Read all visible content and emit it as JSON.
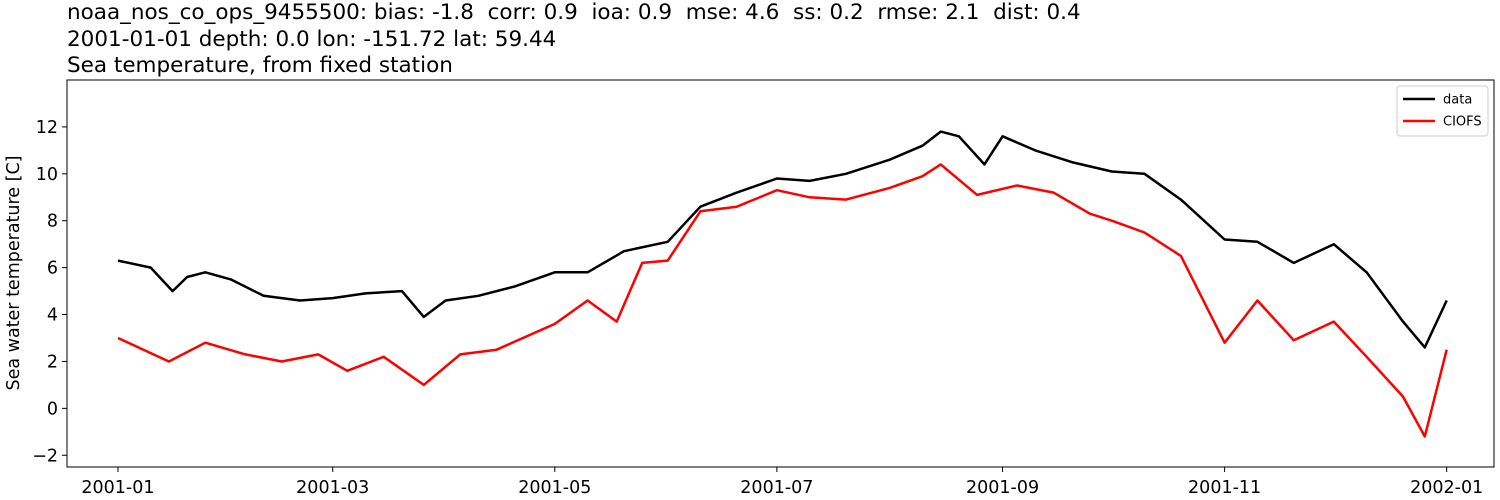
{
  "chart_data": {
    "type": "line",
    "title_lines": [
      "noaa_nos_co_ops_9455500: bias: -1.8  corr: 0.9  ioa: 0.9  mse: 4.6  ss: 0.2  rmse: 2.1  dist: 0.4",
      "2001-01-01 depth: 0.0 lon: -151.72 lat: 59.44",
      "Sea temperature, from fixed station"
    ],
    "xlabel": "",
    "ylabel": "Sea water temperature [C]",
    "xlim": [
      "2000-12-18",
      "2002-01-14"
    ],
    "ylim": [
      -2.5,
      14.0
    ],
    "xticks": [
      "2001-01",
      "2001-03",
      "2001-05",
      "2001-07",
      "2001-09",
      "2001-11",
      "2002-01"
    ],
    "yticks": [
      -2,
      0,
      2,
      4,
      6,
      8,
      10,
      12
    ],
    "grid": false,
    "legend": "top-right",
    "colors": {
      "data": "#000000",
      "CIOFS": "#ff0000"
    },
    "series": [
      {
        "name": "data",
        "x": [
          "2001-01-01",
          "2001-01-10",
          "2001-01-16",
          "2001-01-20",
          "2001-01-25",
          "2001-02-01",
          "2001-02-10",
          "2001-02-20",
          "2001-03-01",
          "2001-03-10",
          "2001-03-20",
          "2001-03-26",
          "2001-04-01",
          "2001-04-10",
          "2001-04-20",
          "2001-05-01",
          "2001-05-10",
          "2001-05-20",
          "2001-06-01",
          "2001-06-10",
          "2001-06-20",
          "2001-07-01",
          "2001-07-10",
          "2001-07-20",
          "2001-08-01",
          "2001-08-10",
          "2001-08-15",
          "2001-08-20",
          "2001-08-27",
          "2001-09-01",
          "2001-09-10",
          "2001-09-20",
          "2001-10-01",
          "2001-10-10",
          "2001-10-20",
          "2001-11-01",
          "2001-11-10",
          "2001-11-20",
          "2001-12-01",
          "2001-12-10",
          "2001-12-20",
          "2001-12-26",
          "2002-01-01"
        ],
        "values": [
          6.3,
          6.0,
          5.0,
          5.6,
          5.8,
          5.5,
          4.8,
          4.6,
          4.7,
          4.9,
          5.0,
          3.9,
          4.6,
          4.8,
          5.2,
          5.8,
          5.8,
          6.7,
          7.1,
          8.6,
          9.2,
          9.8,
          9.7,
          10.0,
          10.6,
          11.2,
          11.8,
          11.6,
          10.4,
          11.6,
          11.0,
          10.5,
          10.1,
          10.0,
          8.9,
          7.2,
          7.1,
          6.2,
          7.0,
          5.8,
          3.7,
          2.6,
          4.6
        ]
      },
      {
        "name": "CIOFS",
        "x": [
          "2001-01-01",
          "2001-01-08",
          "2001-01-15",
          "2001-01-25",
          "2001-02-05",
          "2001-02-15",
          "2001-02-25",
          "2001-03-05",
          "2001-03-15",
          "2001-03-26",
          "2001-04-05",
          "2001-04-15",
          "2001-05-01",
          "2001-05-10",
          "2001-05-18",
          "2001-05-25",
          "2001-06-01",
          "2001-06-10",
          "2001-06-20",
          "2001-07-01",
          "2001-07-10",
          "2001-07-20",
          "2001-08-01",
          "2001-08-10",
          "2001-08-15",
          "2001-08-25",
          "2001-09-05",
          "2001-09-15",
          "2001-09-25",
          "2001-10-01",
          "2001-10-10",
          "2001-10-20",
          "2001-11-01",
          "2001-11-10",
          "2001-11-20",
          "2001-12-01",
          "2001-12-10",
          "2001-12-20",
          "2001-12-26",
          "2002-01-01"
        ],
        "values": [
          3.0,
          2.5,
          2.0,
          2.8,
          2.3,
          2.0,
          2.3,
          1.6,
          2.2,
          1.0,
          2.3,
          2.5,
          3.6,
          4.6,
          3.7,
          6.2,
          6.3,
          8.4,
          8.6,
          9.3,
          9.0,
          8.9,
          9.4,
          9.9,
          10.4,
          9.1,
          9.5,
          9.2,
          8.3,
          8.0,
          7.5,
          6.5,
          2.8,
          4.6,
          2.9,
          3.7,
          2.2,
          0.5,
          -1.2,
          2.5
        ]
      }
    ]
  }
}
